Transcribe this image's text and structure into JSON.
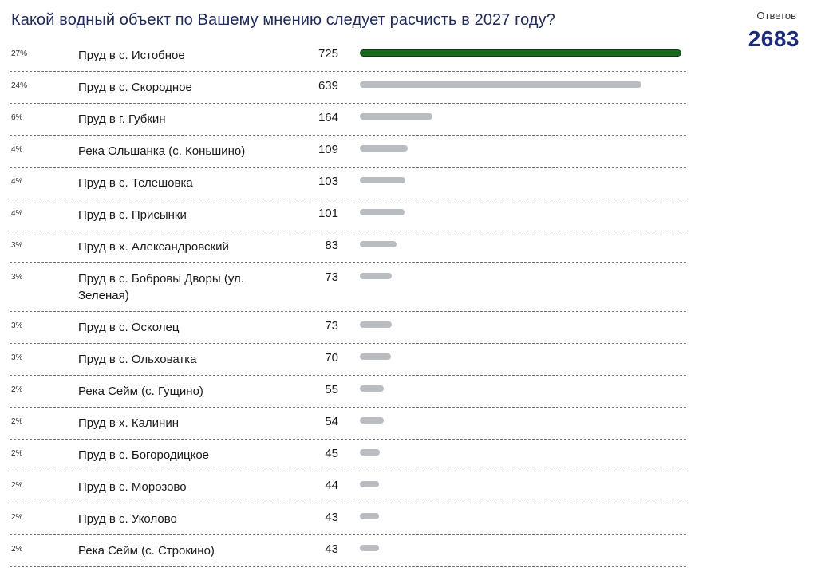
{
  "question": "Какой водный объект по Вашему мнению следует расчисть в 2027 году?",
  "answers_label": "Ответов",
  "answers_total": "2683",
  "colors": {
    "leader_bar": "#176b1f",
    "bar": "#b9bcc1",
    "title": "#1f2a5a",
    "total": "#1c2a7a"
  },
  "chart_data": {
    "type": "bar",
    "orientation": "horizontal",
    "title": "Какой водный объект по Вашему мнению следует расчисть в 2027 году?",
    "total": 2683,
    "categories": [
      "Пруд в с. Истобное",
      "Пруд в с. Скородное",
      "Пруд в г. Губкин",
      "Река Ольшанка (с. Коньшино)",
      "Пруд в с. Телешовка",
      "Пруд в с. Присынки",
      "Пруд в х. Александровский",
      "Пруд в с. Бобровы Дворы (ул. Зеленая)",
      "Пруд в с. Осколец",
      "Пруд в с. Ольховатка",
      "Река Сейм (с. Гущино)",
      "Пруд в х. Калинин",
      "Пруд в с. Богородицкое",
      "Пруд в с. Морозово",
      "Пруд в с. Уколово",
      "Река Сейм (с. Строкино)"
    ],
    "values": [
      725,
      639,
      164,
      109,
      103,
      101,
      83,
      73,
      73,
      70,
      55,
      54,
      45,
      44,
      43,
      43
    ],
    "percents": [
      "27%",
      "24%",
      "6%",
      "4%",
      "4%",
      "4%",
      "3%",
      "3%",
      "3%",
      "3%",
      "2%",
      "2%",
      "2%",
      "2%",
      "2%",
      "2%"
    ],
    "xlim": [
      0,
      725
    ]
  }
}
